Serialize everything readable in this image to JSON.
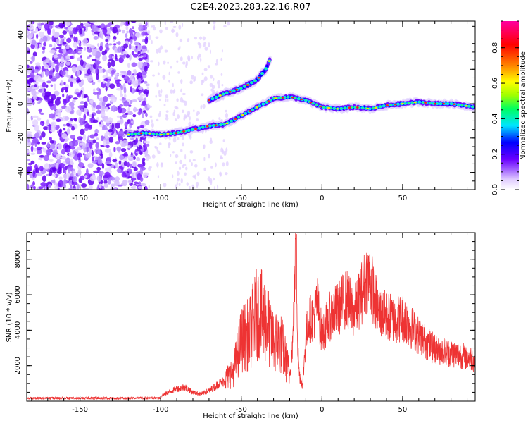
{
  "title": "C2E4.2023.283.22.16.R07",
  "chart_data": [
    {
      "type": "heatmap",
      "xlabel": "Height of straight line (km)",
      "ylabel": "Frequency (Hz)",
      "xlim": [
        -183,
        95
      ],
      "ylim": [
        -50,
        48
      ],
      "xticks": [
        -150,
        -100,
        -50,
        0,
        50
      ],
      "yticks": [
        -40,
        -20,
        0,
        20,
        40
      ],
      "colorbar": {
        "label": "Normalized spectral amplitude",
        "range": [
          0,
          0.95
        ],
        "ticks": [
          0.0,
          0.2,
          0.4,
          0.6,
          0.8
        ],
        "colormap": [
          "#ffffff",
          "#e0ccff",
          "#a060ff",
          "#6a00ff",
          "#0000ff",
          "#00e5ff",
          "#00ff60",
          "#a0ff00",
          "#ffff00",
          "#ff8000",
          "#ff0000",
          "#ff00a0"
        ]
      },
      "ridge": [
        {
          "x": -120,
          "y": -18
        },
        {
          "x": -110,
          "y": -17
        },
        {
          "x": -100,
          "y": -18
        },
        {
          "x": -90,
          "y": -17
        },
        {
          "x": -80,
          "y": -15
        },
        {
          "x": -70,
          "y": -13
        },
        {
          "x": -60,
          "y": -12
        },
        {
          "x": -50,
          "y": -7
        },
        {
          "x": -40,
          "y": -2
        },
        {
          "x": -30,
          "y": 3
        },
        {
          "x": -20,
          "y": 4
        },
        {
          "x": -10,
          "y": 2
        },
        {
          "x": 0,
          "y": -2
        },
        {
          "x": 10,
          "y": -3
        },
        {
          "x": 20,
          "y": -2
        },
        {
          "x": 30,
          "y": -3
        },
        {
          "x": 40,
          "y": -1
        },
        {
          "x": 50,
          "y": 0
        },
        {
          "x": 60,
          "y": 1
        },
        {
          "x": 70,
          "y": 0
        },
        {
          "x": 80,
          "y": 0
        },
        {
          "x": 95,
          "y": -2
        }
      ],
      "upper_branch": [
        {
          "x": -70,
          "y": 2
        },
        {
          "x": -60,
          "y": 6
        },
        {
          "x": -50,
          "y": 9
        },
        {
          "x": -40,
          "y": 14
        },
        {
          "x": -35,
          "y": 20
        },
        {
          "x": -32,
          "y": 26
        }
      ]
    },
    {
      "type": "line",
      "xlabel": "Height of straight line (km)",
      "ylabel": "SNR (10 * v/v)",
      "xlim": [
        -183,
        95
      ],
      "ylim": [
        0,
        9500
      ],
      "xticks": [
        -150,
        -100,
        -50,
        0,
        50
      ],
      "yticks": [
        2000,
        4000,
        6000,
        8000
      ],
      "color": "#ee3333",
      "series": [
        {
          "x": [
            -183,
            -160,
            -140,
            -120,
            -110,
            -100,
            -95,
            -90,
            -85,
            -80,
            -75,
            -70,
            -65,
            -60,
            -55,
            -50,
            -45,
            -40,
            -35,
            -30,
            -25,
            -20,
            -18,
            -16,
            -15,
            -14,
            -12,
            -10,
            -8,
            -5,
            -3,
            0,
            5,
            10,
            15,
            20,
            25,
            28,
            30,
            35,
            40,
            45,
            50,
            60,
            70,
            80,
            90,
            95
          ],
          "y": [
            150,
            180,
            150,
            200,
            250,
            300,
            500,
            700,
            800,
            500,
            400,
            600,
            900,
            1200,
            1700,
            3500,
            3800,
            5000,
            4600,
            3400,
            3200,
            1500,
            3500,
            9500,
            3000,
            1500,
            900,
            3600,
            4600,
            4800,
            5600,
            3700,
            4800,
            5200,
            5800,
            5000,
            6200,
            7000,
            6800,
            5000,
            4800,
            4600,
            4700,
            3700,
            2900,
            2700,
            2500,
            2300
          ]
        }
      ]
    }
  ]
}
